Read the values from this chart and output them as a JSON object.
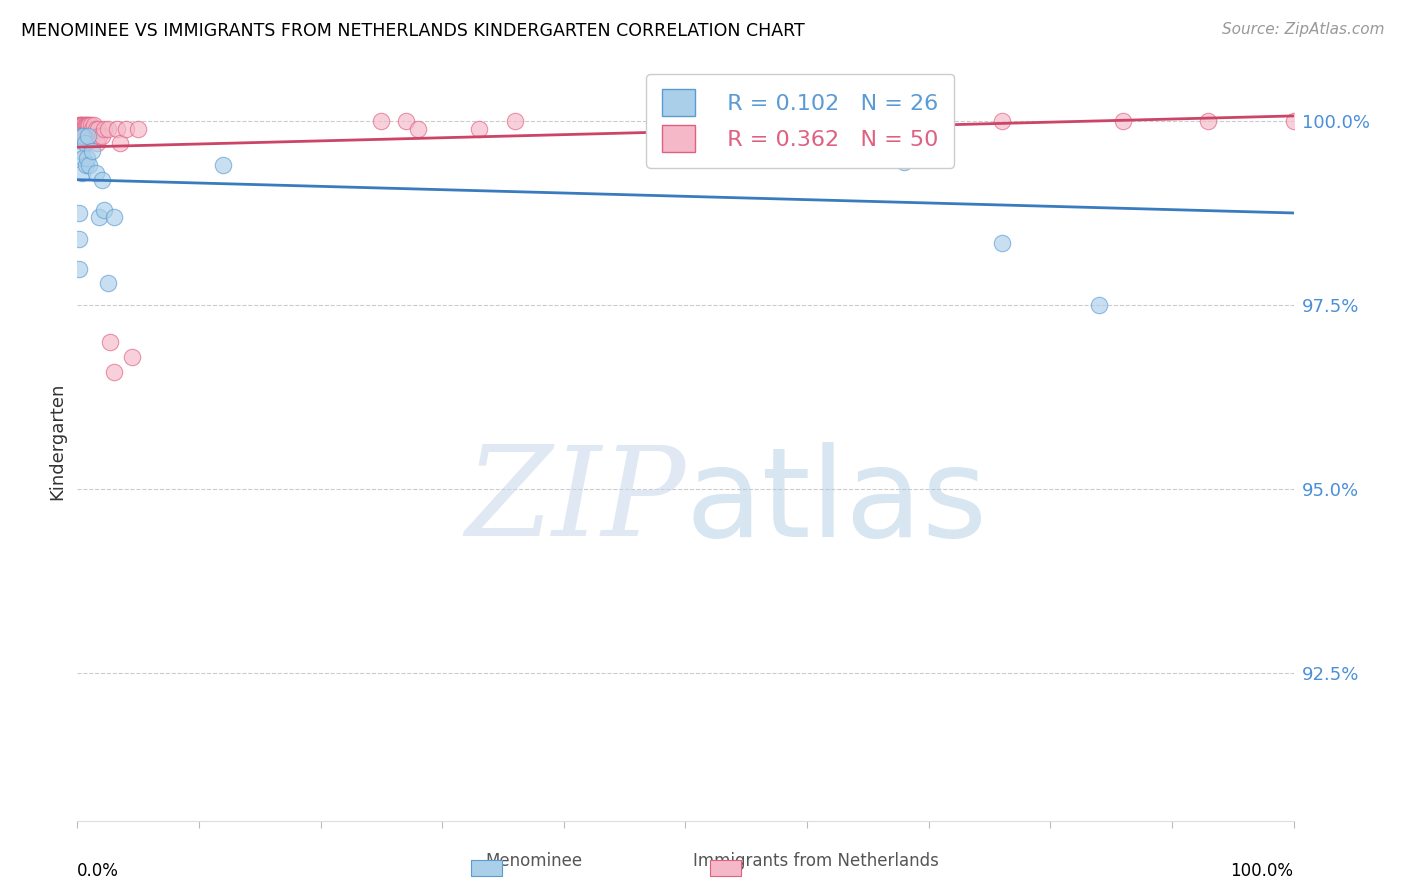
{
  "title": "MENOMINEE VS IMMIGRANTS FROM NETHERLANDS KINDERGARTEN CORRELATION CHART",
  "source": "Source: ZipAtlas.com",
  "ylabel": "Kindergarten",
  "ytick_labels": [
    "100.0%",
    "97.5%",
    "95.0%",
    "92.5%"
  ],
  "ytick_values": [
    1.0,
    0.975,
    0.95,
    0.925
  ],
  "xlim": [
    0.0,
    1.0
  ],
  "ylim": [
    0.905,
    1.008
  ],
  "legend_r1": "R = 0.102",
  "legend_n1": "N = 26",
  "legend_r2": "R = 0.362",
  "legend_n2": "N = 50",
  "color_blue": "#aacfe8",
  "color_pink": "#f4b8c8",
  "edge_blue": "#5b9bd5",
  "edge_pink": "#e06080",
  "line_blue": "#3a7bbf",
  "line_pink": "#cc4466",
  "menominee_x": [
    0.001,
    0.001,
    0.001,
    0.003,
    0.003,
    0.004,
    0.005,
    0.005,
    0.006,
    0.007,
    0.008,
    0.009,
    0.01,
    0.012,
    0.015,
    0.018,
    0.02,
    0.022,
    0.025,
    0.03,
    0.12,
    0.52,
    0.6,
    0.68,
    0.76,
    0.84
  ],
  "menominee_y": [
    0.9875,
    0.984,
    0.98,
    0.998,
    0.996,
    0.993,
    0.998,
    0.995,
    0.997,
    0.994,
    0.995,
    0.998,
    0.994,
    0.996,
    0.993,
    0.987,
    0.992,
    0.988,
    0.978,
    0.987,
    0.994,
    1.0,
    0.9995,
    0.9945,
    0.9835,
    0.975
  ],
  "netherlands_x": [
    0.001,
    0.001,
    0.002,
    0.002,
    0.003,
    0.003,
    0.004,
    0.004,
    0.005,
    0.005,
    0.005,
    0.006,
    0.006,
    0.007,
    0.007,
    0.008,
    0.008,
    0.009,
    0.009,
    0.01,
    0.01,
    0.011,
    0.012,
    0.013,
    0.014,
    0.015,
    0.016,
    0.017,
    0.018,
    0.02,
    0.022,
    0.025,
    0.027,
    0.03,
    0.033,
    0.035,
    0.04,
    0.045,
    0.05,
    0.25,
    0.27,
    0.28,
    0.33,
    0.36,
    0.63,
    0.65,
    0.76,
    0.86,
    0.93,
    1.0
  ],
  "netherlands_y": [
    0.9995,
    0.998,
    0.9995,
    0.998,
    0.9995,
    0.998,
    0.9995,
    0.998,
    0.9995,
    0.999,
    0.998,
    0.9995,
    0.998,
    0.9995,
    0.998,
    0.9995,
    0.998,
    0.9995,
    0.998,
    0.9995,
    0.998,
    0.9995,
    0.999,
    0.998,
    0.9995,
    0.999,
    0.997,
    0.999,
    0.998,
    0.998,
    0.999,
    0.999,
    0.97,
    0.966,
    0.999,
    0.997,
    0.999,
    0.968,
    0.999,
    1.0,
    1.0,
    0.999,
    0.999,
    1.0,
    1.0,
    0.999,
    1.0,
    1.0,
    1.0,
    1.0
  ],
  "watermark_zip": "ZIP",
  "watermark_atlas": "atlas",
  "background_color": "#ffffff"
}
